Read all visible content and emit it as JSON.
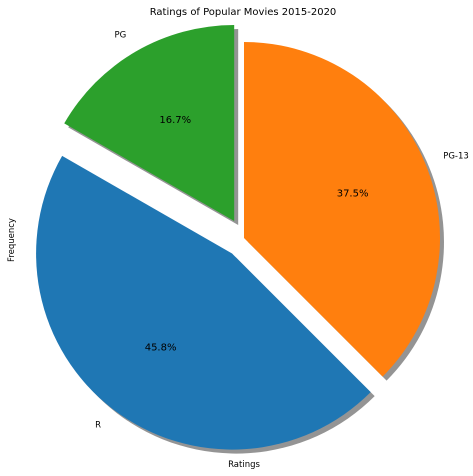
{
  "chart_data": {
    "type": "pie",
    "title": "Ratings of Popular Movies 2015-2020",
    "xlabel": "Ratings",
    "ylabel": "Frequency",
    "labels": [
      "PG",
      "R",
      "PG-13"
    ],
    "values": [
      16.7,
      45.8,
      37.5
    ],
    "percent_labels": [
      "16.7%",
      "45.8%",
      "37.5%"
    ],
    "colors": [
      "#2ca02c",
      "#1f77b4",
      "#ff7f0e"
    ],
    "explode": [
      0.1,
      0.1,
      0
    ],
    "start_angle": 90,
    "counterclock": true,
    "shadow": true,
    "legend": "none"
  }
}
